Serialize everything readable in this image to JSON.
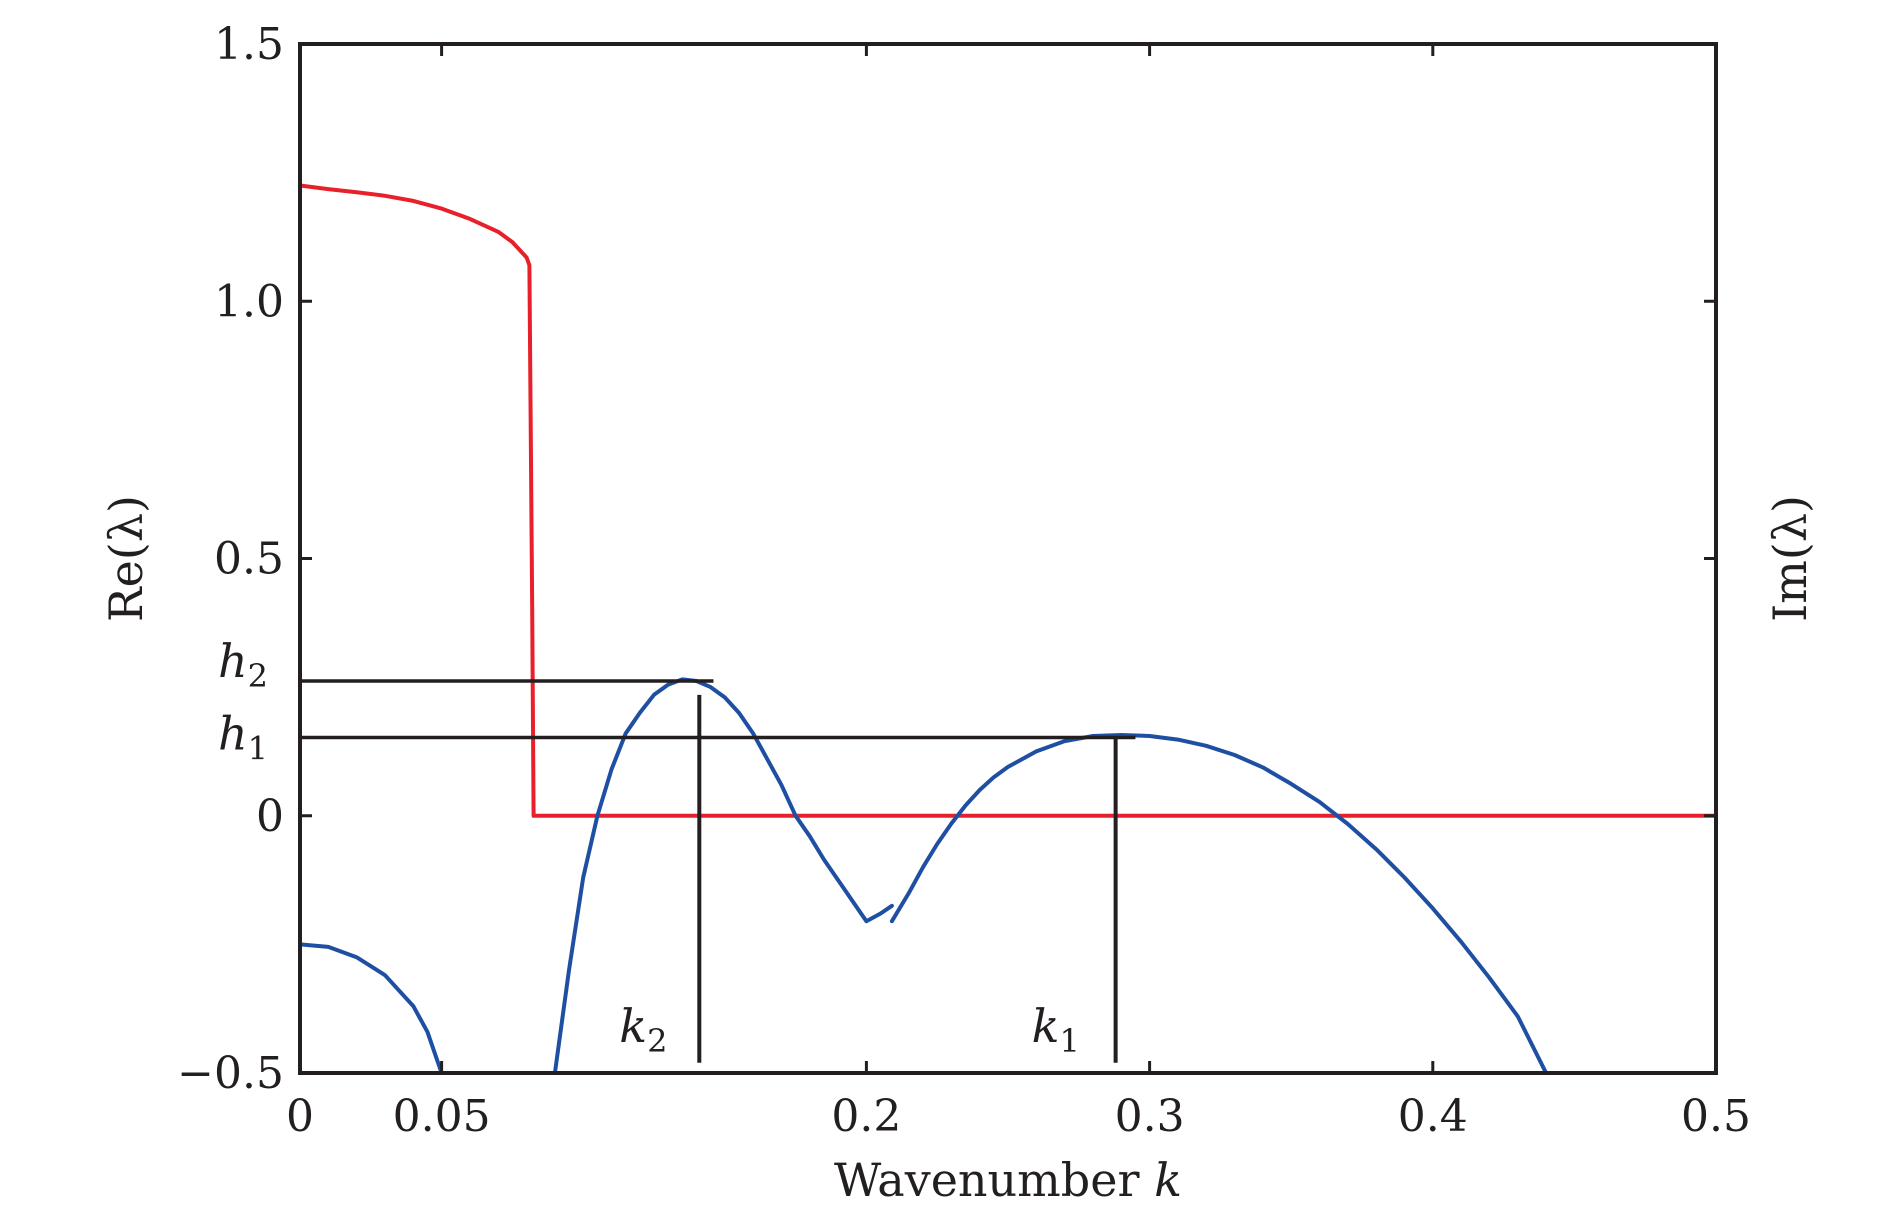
{
  "chart_data": {
    "type": "line",
    "xlabel": "Wavenumber ",
    "xlabel_var": "k",
    "ylabel_left": "Re(λ)",
    "ylabel_right": "Im(λ)",
    "xlim": [
      0,
      0.5
    ],
    "ylim": [
      -0.5,
      1.5
    ],
    "x_ticks": [
      {
        "value": 0,
        "label": "0"
      },
      {
        "value": 0.05,
        "label": "0.05"
      },
      {
        "value": 0.2,
        "label": "0.2"
      },
      {
        "value": 0.3,
        "label": "0.3"
      },
      {
        "value": 0.4,
        "label": "0.4"
      },
      {
        "value": 0.5,
        "label": "0.5"
      }
    ],
    "y_ticks": [
      {
        "value": -0.5,
        "label": "−0.5"
      },
      {
        "value": 0,
        "label": "0"
      },
      {
        "value": 0.5,
        "label": "0.5"
      },
      {
        "value": 1.0,
        "label": "1.0"
      },
      {
        "value": 1.5,
        "label": "1.5"
      }
    ],
    "grid": false,
    "colors": {
      "red": "#e8202a",
      "blue": "#1f4fa3",
      "black": "#231f20"
    },
    "series": [
      {
        "color": "red",
        "x": [
          0,
          0.01,
          0.02,
          0.03,
          0.04,
          0.05,
          0.06,
          0.07,
          0.075,
          0.08,
          0.081,
          0.082,
          0.0825,
          0.09,
          0.1,
          0.2,
          0.3,
          0.4,
          0.5
        ],
        "y": [
          1.225,
          1.218,
          1.212,
          1.205,
          1.195,
          1.18,
          1.16,
          1.135,
          1.115,
          1.085,
          1.07,
          0.4,
          0.0,
          0.0,
          0.0,
          0.0,
          0.0,
          0.0,
          0.0
        ]
      },
      {
        "color": "blue",
        "x": [
          0.0,
          0.01,
          0.02,
          0.03,
          0.04,
          0.045,
          0.05
        ],
        "y": [
          -0.25,
          -0.255,
          -0.275,
          -0.31,
          -0.37,
          -0.42,
          -0.5
        ]
      },
      {
        "color": "blue",
        "x": [
          0.09,
          0.095,
          0.1,
          0.105,
          0.11,
          0.115,
          0.12,
          0.125,
          0.13,
          0.135,
          0.14,
          0.145,
          0.15,
          0.155,
          0.16,
          0.165,
          0.17,
          0.175,
          0.18,
          0.185,
          0.19,
          0.195,
          0.2,
          0.205,
          0.209
        ],
        "y": [
          -0.5,
          -0.3,
          -0.12,
          0.0,
          0.09,
          0.16,
          0.2,
          0.235,
          0.255,
          0.265,
          0.262,
          0.25,
          0.23,
          0.2,
          0.16,
          0.11,
          0.06,
          0.0,
          -0.04,
          -0.085,
          -0.125,
          -0.165,
          -0.205,
          -0.19,
          -0.175
        ]
      },
      {
        "color": "blue",
        "x": [
          0.209,
          0.215,
          0.22,
          0.225,
          0.23,
          0.235,
          0.24,
          0.245,
          0.25,
          0.26,
          0.27,
          0.28,
          0.29,
          0.3,
          0.31,
          0.32,
          0.33,
          0.34,
          0.35,
          0.36,
          0.37,
          0.38,
          0.39,
          0.4,
          0.41,
          0.42,
          0.43,
          0.44
        ],
        "y": [
          -0.205,
          -0.15,
          -0.1,
          -0.055,
          -0.015,
          0.02,
          0.05,
          0.075,
          0.095,
          0.125,
          0.145,
          0.155,
          0.157,
          0.155,
          0.148,
          0.136,
          0.118,
          0.094,
          0.062,
          0.027,
          -0.016,
          -0.065,
          -0.12,
          -0.18,
          -0.245,
          -0.315,
          -0.39,
          -0.5
        ]
      }
    ],
    "annotations": {
      "h2": {
        "label": "h",
        "sub": "2",
        "y": 0.262,
        "x_end": 0.146
      },
      "h1": {
        "label": "h",
        "sub": "1",
        "y": 0.152,
        "x_end": 0.295
      },
      "k2": {
        "label": "k",
        "sub": "2",
        "x": 0.141,
        "y_top": 0.235,
        "y_bottom": -0.48
      },
      "k1": {
        "label": "k",
        "sub": "1",
        "x": 0.288,
        "y_top": 0.152,
        "y_bottom": -0.48
      }
    }
  }
}
